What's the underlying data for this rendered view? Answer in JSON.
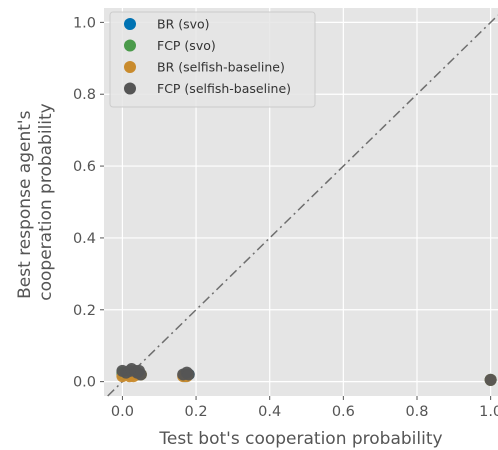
{
  "chart_data": {
    "type": "scatter",
    "xlabel": "Test bot's cooperation probability",
    "ylabel_lines": [
      "Best response agent's",
      "cooperation probability"
    ],
    "xlim": [
      -0.05,
      1.02
    ],
    "ylim": [
      -0.04,
      1.04
    ],
    "x_ticks": [
      0.0,
      0.2,
      0.4,
      0.6,
      0.8,
      1.0
    ],
    "x_tick_labels": [
      "0.0",
      "0.2",
      "0.4",
      "0.6",
      "0.8",
      "1.0"
    ],
    "y_ticks": [
      0.0,
      0.2,
      0.4,
      0.6,
      0.8,
      1.0
    ],
    "y_tick_labels": [
      "0.0",
      "0.2",
      "0.4",
      "0.6",
      "0.8",
      "1.0"
    ],
    "grid": true,
    "diagonal_reference_line": true,
    "legend_position": "top-left",
    "series": [
      {
        "name": "BR (svo)",
        "color": "#0072b2",
        "points": [
          [
            0.0,
            0.02
          ],
          [
            0.02,
            0.02
          ],
          [
            0.04,
            0.02
          ],
          [
            0.17,
            0.015
          ],
          [
            0.18,
            0.02
          ],
          [
            1.0,
            0.005
          ]
        ]
      },
      {
        "name": "FCP (svo)",
        "color": "#4a9a4a",
        "points": [
          [
            0.0,
            0.025
          ],
          [
            0.03,
            0.025
          ],
          [
            0.05,
            0.02
          ],
          [
            0.17,
            0.02
          ],
          [
            1.0,
            0.005
          ]
        ]
      },
      {
        "name": "BR (selfish-baseline)",
        "color": "#c98b2d",
        "points": [
          [
            0.0,
            0.015
          ],
          [
            0.02,
            0.015
          ],
          [
            0.03,
            0.015
          ],
          [
            0.04,
            0.02
          ],
          [
            0.05,
            0.02
          ],
          [
            0.165,
            0.015
          ],
          [
            0.175,
            0.015
          ],
          [
            1.0,
            0.005
          ]
        ]
      },
      {
        "name": "FCP (selfish-baseline)",
        "color": "#555555",
        "points": [
          [
            0.0,
            0.03
          ],
          [
            0.01,
            0.025
          ],
          [
            0.02,
            0.03
          ],
          [
            0.025,
            0.035
          ],
          [
            0.035,
            0.03
          ],
          [
            0.04,
            0.025
          ],
          [
            0.045,
            0.03
          ],
          [
            0.05,
            0.02
          ],
          [
            0.165,
            0.02
          ],
          [
            0.175,
            0.025
          ],
          [
            0.18,
            0.02
          ],
          [
            1.0,
            0.005
          ]
        ]
      }
    ]
  }
}
